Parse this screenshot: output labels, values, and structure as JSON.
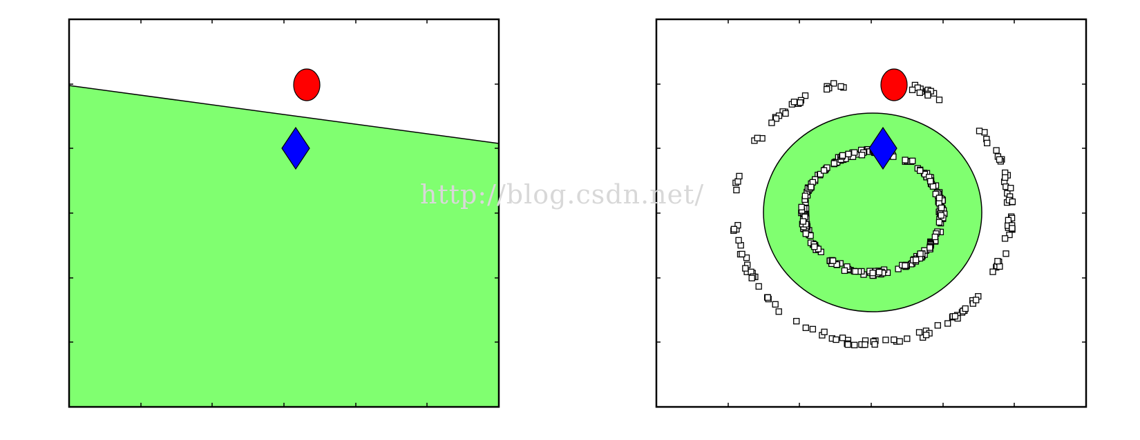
{
  "panels": [
    {
      "id": "left",
      "region": "half-plane (linear boundary)",
      "boundary": "line"
    },
    {
      "id": "right",
      "region": "ellipse (nonlinear boundary)",
      "boundary": "ellipse"
    }
  ],
  "markers": {
    "circle": {
      "shape": "circle",
      "color": "#ff0000"
    },
    "diamond": {
      "shape": "diamond",
      "color": "#0000ff"
    },
    "samples": {
      "shape": "square",
      "color": "#000000"
    }
  },
  "colors": {
    "region_fill": "#80ff70",
    "axes": "#000000",
    "background": "#ffffff"
  },
  "watermark": "http://blog.csdn.net/"
}
